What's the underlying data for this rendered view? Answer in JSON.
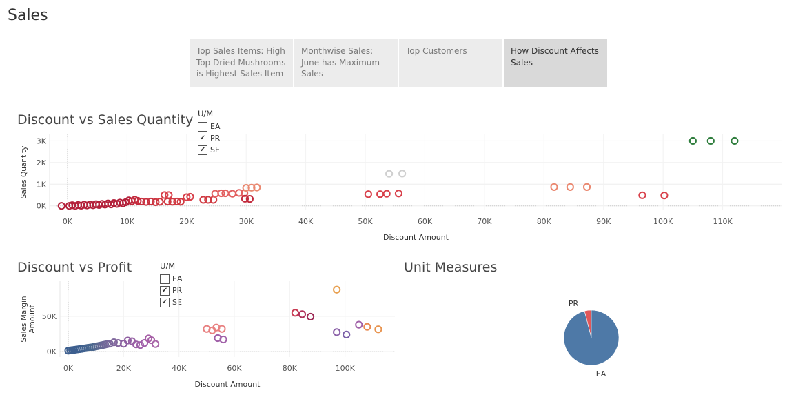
{
  "dashboard": {
    "title": "Sales"
  },
  "tabs": [
    {
      "label": "Top Sales Items: High Top Dried Mushrooms is Highest Sales Item",
      "active": false
    },
    {
      "label": "Monthwise Sales: June has Maximum Sales",
      "active": false
    },
    {
      "label": "Top Customers",
      "active": false
    },
    {
      "label": "How Discount Affects Sales",
      "active": true
    }
  ],
  "legend1": {
    "title": "U/M",
    "items": [
      {
        "label": "EA",
        "checked": false
      },
      {
        "label": "PR",
        "checked": true
      },
      {
        "label": "SE",
        "checked": true
      }
    ],
    "check_glyph": "✔"
  },
  "legend2": {
    "title": "U/M",
    "items": [
      {
        "label": "EA",
        "checked": false
      },
      {
        "label": "PR",
        "checked": true
      },
      {
        "label": "SE",
        "checked": true
      }
    ],
    "check_glyph": "✔"
  },
  "chart_data": [
    {
      "type": "scatter",
      "title": "Discount vs Sales Quantity",
      "xlabel": "Discount Amount",
      "ylabel": "Sales Quantity",
      "xlim": [
        -3000,
        120000
      ],
      "ylim": [
        -200,
        3300
      ],
      "xticks": [
        0,
        10000,
        20000,
        30000,
        40000,
        50000,
        60000,
        70000,
        80000,
        90000,
        100000,
        110000
      ],
      "xtick_labels": [
        "0K",
        "10K",
        "20K",
        "30K",
        "40K",
        "50K",
        "60K",
        "70K",
        "80K",
        "90K",
        "100K",
        "110K"
      ],
      "yticks": [
        0,
        1000,
        2000,
        3000
      ],
      "ytick_labels": [
        "0K",
        "1K",
        "2K",
        "3K"
      ],
      "grid": true,
      "points": [
        {
          "x": -1000,
          "y": 0,
          "color": "#b3203a"
        },
        {
          "x": 300,
          "y": 0,
          "color": "#b3203a"
        },
        {
          "x": 800,
          "y": 30,
          "color": "#b3203a"
        },
        {
          "x": 1300,
          "y": 0,
          "color": "#b3203a"
        },
        {
          "x": 1800,
          "y": 40,
          "color": "#b3203a"
        },
        {
          "x": 2300,
          "y": 10,
          "color": "#b3203a"
        },
        {
          "x": 2800,
          "y": 50,
          "color": "#b3203a"
        },
        {
          "x": 3300,
          "y": 20,
          "color": "#b3203a"
        },
        {
          "x": 3800,
          "y": 60,
          "color": "#b3203a"
        },
        {
          "x": 4300,
          "y": 30,
          "color": "#b3203a"
        },
        {
          "x": 4800,
          "y": 80,
          "color": "#b3203a"
        },
        {
          "x": 5300,
          "y": 40,
          "color": "#b3203a"
        },
        {
          "x": 5800,
          "y": 90,
          "color": "#b3203a"
        },
        {
          "x": 6300,
          "y": 60,
          "color": "#b3203a"
        },
        {
          "x": 6800,
          "y": 110,
          "color": "#b3203a"
        },
        {
          "x": 7300,
          "y": 70,
          "color": "#b3203a"
        },
        {
          "x": 7800,
          "y": 130,
          "color": "#b3203a"
        },
        {
          "x": 8300,
          "y": 90,
          "color": "#b3203a"
        },
        {
          "x": 8800,
          "y": 150,
          "color": "#b3203a"
        },
        {
          "x": 9300,
          "y": 110,
          "color": "#b3203a"
        },
        {
          "x": 9800,
          "y": 170,
          "color": "#b3203a"
        },
        {
          "x": 10300,
          "y": 250,
          "color": "#b3203a"
        },
        {
          "x": 10800,
          "y": 210,
          "color": "#c22a3c"
        },
        {
          "x": 11300,
          "y": 280,
          "color": "#c22a3c"
        },
        {
          "x": 11800,
          "y": 230,
          "color": "#c22a3c"
        },
        {
          "x": 12400,
          "y": 200,
          "color": "#c8303f"
        },
        {
          "x": 13200,
          "y": 180,
          "color": "#c8303f"
        },
        {
          "x": 14000,
          "y": 200,
          "color": "#c8303f"
        },
        {
          "x": 14800,
          "y": 170,
          "color": "#cc3540"
        },
        {
          "x": 15500,
          "y": 190,
          "color": "#d03a42"
        },
        {
          "x": 16300,
          "y": 500,
          "color": "#d8404a"
        },
        {
          "x": 17000,
          "y": 500,
          "color": "#d8404a"
        },
        {
          "x": 16800,
          "y": 200,
          "color": "#d03a42"
        },
        {
          "x": 17600,
          "y": 190,
          "color": "#d03a42"
        },
        {
          "x": 18400,
          "y": 200,
          "color": "#d03a42"
        },
        {
          "x": 19000,
          "y": 190,
          "color": "#d03a42"
        },
        {
          "x": 20000,
          "y": 400,
          "color": "#d8404a"
        },
        {
          "x": 20600,
          "y": 420,
          "color": "#d8404a"
        },
        {
          "x": 22800,
          "y": 280,
          "color": "#d03a42"
        },
        {
          "x": 23600,
          "y": 280,
          "color": "#d03a42"
        },
        {
          "x": 24500,
          "y": 280,
          "color": "#d03a42"
        },
        {
          "x": 24800,
          "y": 560,
          "color": "#e26060"
        },
        {
          "x": 25800,
          "y": 580,
          "color": "#e26060"
        },
        {
          "x": 26500,
          "y": 580,
          "color": "#e26060"
        },
        {
          "x": 27700,
          "y": 560,
          "color": "#e26060"
        },
        {
          "x": 28800,
          "y": 600,
          "color": "#e26060"
        },
        {
          "x": 29700,
          "y": 580,
          "color": "#e26060"
        },
        {
          "x": 30000,
          "y": 830,
          "color": "#ea8870"
        },
        {
          "x": 30900,
          "y": 840,
          "color": "#ea8870"
        },
        {
          "x": 31800,
          "y": 850,
          "color": "#ea8870"
        },
        {
          "x": 29800,
          "y": 330,
          "color": "#c22a3c"
        },
        {
          "x": 30600,
          "y": 320,
          "color": "#c22a3c"
        },
        {
          "x": 50500,
          "y": 540,
          "color": "#d8404a"
        },
        {
          "x": 52500,
          "y": 540,
          "color": "#d8404a"
        },
        {
          "x": 53600,
          "y": 560,
          "color": "#d8404a"
        },
        {
          "x": 55600,
          "y": 570,
          "color": "#d8404a"
        },
        {
          "x": 54000,
          "y": 1480,
          "color": "#cfcfcf"
        },
        {
          "x": 56200,
          "y": 1490,
          "color": "#cfcfcf"
        },
        {
          "x": 81700,
          "y": 870,
          "color": "#ea8870"
        },
        {
          "x": 84400,
          "y": 870,
          "color": "#ea8870"
        },
        {
          "x": 87200,
          "y": 870,
          "color": "#ea8870"
        },
        {
          "x": 96500,
          "y": 490,
          "color": "#d8404a"
        },
        {
          "x": 100200,
          "y": 480,
          "color": "#d8404a"
        },
        {
          "x": 105000,
          "y": 3000,
          "color": "#2e7d3c"
        },
        {
          "x": 108000,
          "y": 3000,
          "color": "#2e7d3c"
        },
        {
          "x": 112000,
          "y": 3000,
          "color": "#2e7d3c"
        }
      ]
    },
    {
      "type": "scatter",
      "title": "Discount vs Profit",
      "xlabel": "Discount Amount",
      "ylabel": "Sales Margin Amount",
      "xlim": [
        -3000,
        118000
      ],
      "ylim": [
        -8000,
        100000
      ],
      "xticks": [
        0,
        20000,
        40000,
        60000,
        80000,
        100000
      ],
      "xtick_labels": [
        "0K",
        "20K",
        "40K",
        "60K",
        "80K",
        "100K"
      ],
      "yticks": [
        0,
        50000
      ],
      "ytick_labels": [
        "0K",
        "50K"
      ],
      "grid": true,
      "points": [
        {
          "x": 0,
          "y": 1000,
          "color": "#3d5f8f"
        },
        {
          "x": 700,
          "y": 1500,
          "color": "#3d5f8f"
        },
        {
          "x": 1400,
          "y": 1800,
          "color": "#3d5f8f"
        },
        {
          "x": 2100,
          "y": 2200,
          "color": "#3d5f8f"
        },
        {
          "x": 2800,
          "y": 2600,
          "color": "#3d5f8f"
        },
        {
          "x": 3500,
          "y": 3000,
          "color": "#3d5f8f"
        },
        {
          "x": 4200,
          "y": 3400,
          "color": "#3d5f8f"
        },
        {
          "x": 4900,
          "y": 3800,
          "color": "#3d5f8f"
        },
        {
          "x": 5600,
          "y": 4200,
          "color": "#41628f"
        },
        {
          "x": 6300,
          "y": 4600,
          "color": "#41628f"
        },
        {
          "x": 7000,
          "y": 5000,
          "color": "#46658f"
        },
        {
          "x": 7700,
          "y": 5400,
          "color": "#46658f"
        },
        {
          "x": 8400,
          "y": 5800,
          "color": "#4a688f"
        },
        {
          "x": 9100,
          "y": 6200,
          "color": "#4a688f"
        },
        {
          "x": 9800,
          "y": 6800,
          "color": "#50688f"
        },
        {
          "x": 10500,
          "y": 7400,
          "color": "#56688f"
        },
        {
          "x": 11200,
          "y": 8000,
          "color": "#5c6891"
        },
        {
          "x": 11900,
          "y": 8600,
          "color": "#626893"
        },
        {
          "x": 12600,
          "y": 9200,
          "color": "#686895"
        },
        {
          "x": 13300,
          "y": 9800,
          "color": "#6e6897"
        },
        {
          "x": 14000,
          "y": 10400,
          "color": "#746899"
        },
        {
          "x": 15000,
          "y": 11000,
          "color": "#7a689b"
        },
        {
          "x": 16500,
          "y": 13000,
          "color": "#80689d"
        },
        {
          "x": 18000,
          "y": 12000,
          "color": "#86689f"
        },
        {
          "x": 20000,
          "y": 11000,
          "color": "#8b60a0"
        },
        {
          "x": 21500,
          "y": 15500,
          "color": "#9060a2"
        },
        {
          "x": 23000,
          "y": 14500,
          "color": "#9560a4"
        },
        {
          "x": 24500,
          "y": 10000,
          "color": "#9a60a6"
        },
        {
          "x": 26000,
          "y": 9000,
          "color": "#9e60a8"
        },
        {
          "x": 27500,
          "y": 12000,
          "color": "#a260aa"
        },
        {
          "x": 29000,
          "y": 18500,
          "color": "#a65fa6"
        },
        {
          "x": 30000,
          "y": 16000,
          "color": "#a65fa6"
        },
        {
          "x": 31500,
          "y": 10500,
          "color": "#a865a8"
        },
        {
          "x": 50000,
          "y": 32000,
          "color": "#e88080"
        },
        {
          "x": 52000,
          "y": 30000,
          "color": "#e88080"
        },
        {
          "x": 53500,
          "y": 34000,
          "color": "#e88080"
        },
        {
          "x": 55500,
          "y": 32000,
          "color": "#e88080"
        },
        {
          "x": 54000,
          "y": 19000,
          "color": "#a060a8"
        },
        {
          "x": 56000,
          "y": 17000,
          "color": "#a060a8"
        },
        {
          "x": 82000,
          "y": 55000,
          "color": "#c83a52"
        },
        {
          "x": 84500,
          "y": 53000,
          "color": "#b0305a"
        },
        {
          "x": 87500,
          "y": 49500,
          "color": "#9e2a56"
        },
        {
          "x": 97000,
          "y": 88000,
          "color": "#e8a050"
        },
        {
          "x": 97000,
          "y": 27500,
          "color": "#8a60a8"
        },
        {
          "x": 100500,
          "y": 24000,
          "color": "#7a5fa8"
        },
        {
          "x": 105000,
          "y": 38000,
          "color": "#a060a8"
        },
        {
          "x": 108000,
          "y": 35000,
          "color": "#e88a50"
        },
        {
          "x": 112000,
          "y": 31500,
          "color": "#e89450"
        }
      ]
    },
    {
      "type": "pie",
      "title": "Unit Measures",
      "labels": [
        "EA",
        "PR"
      ],
      "values": [
        96,
        4
      ],
      "colors": [
        "#4e79a7",
        "#e15759"
      ]
    }
  ]
}
